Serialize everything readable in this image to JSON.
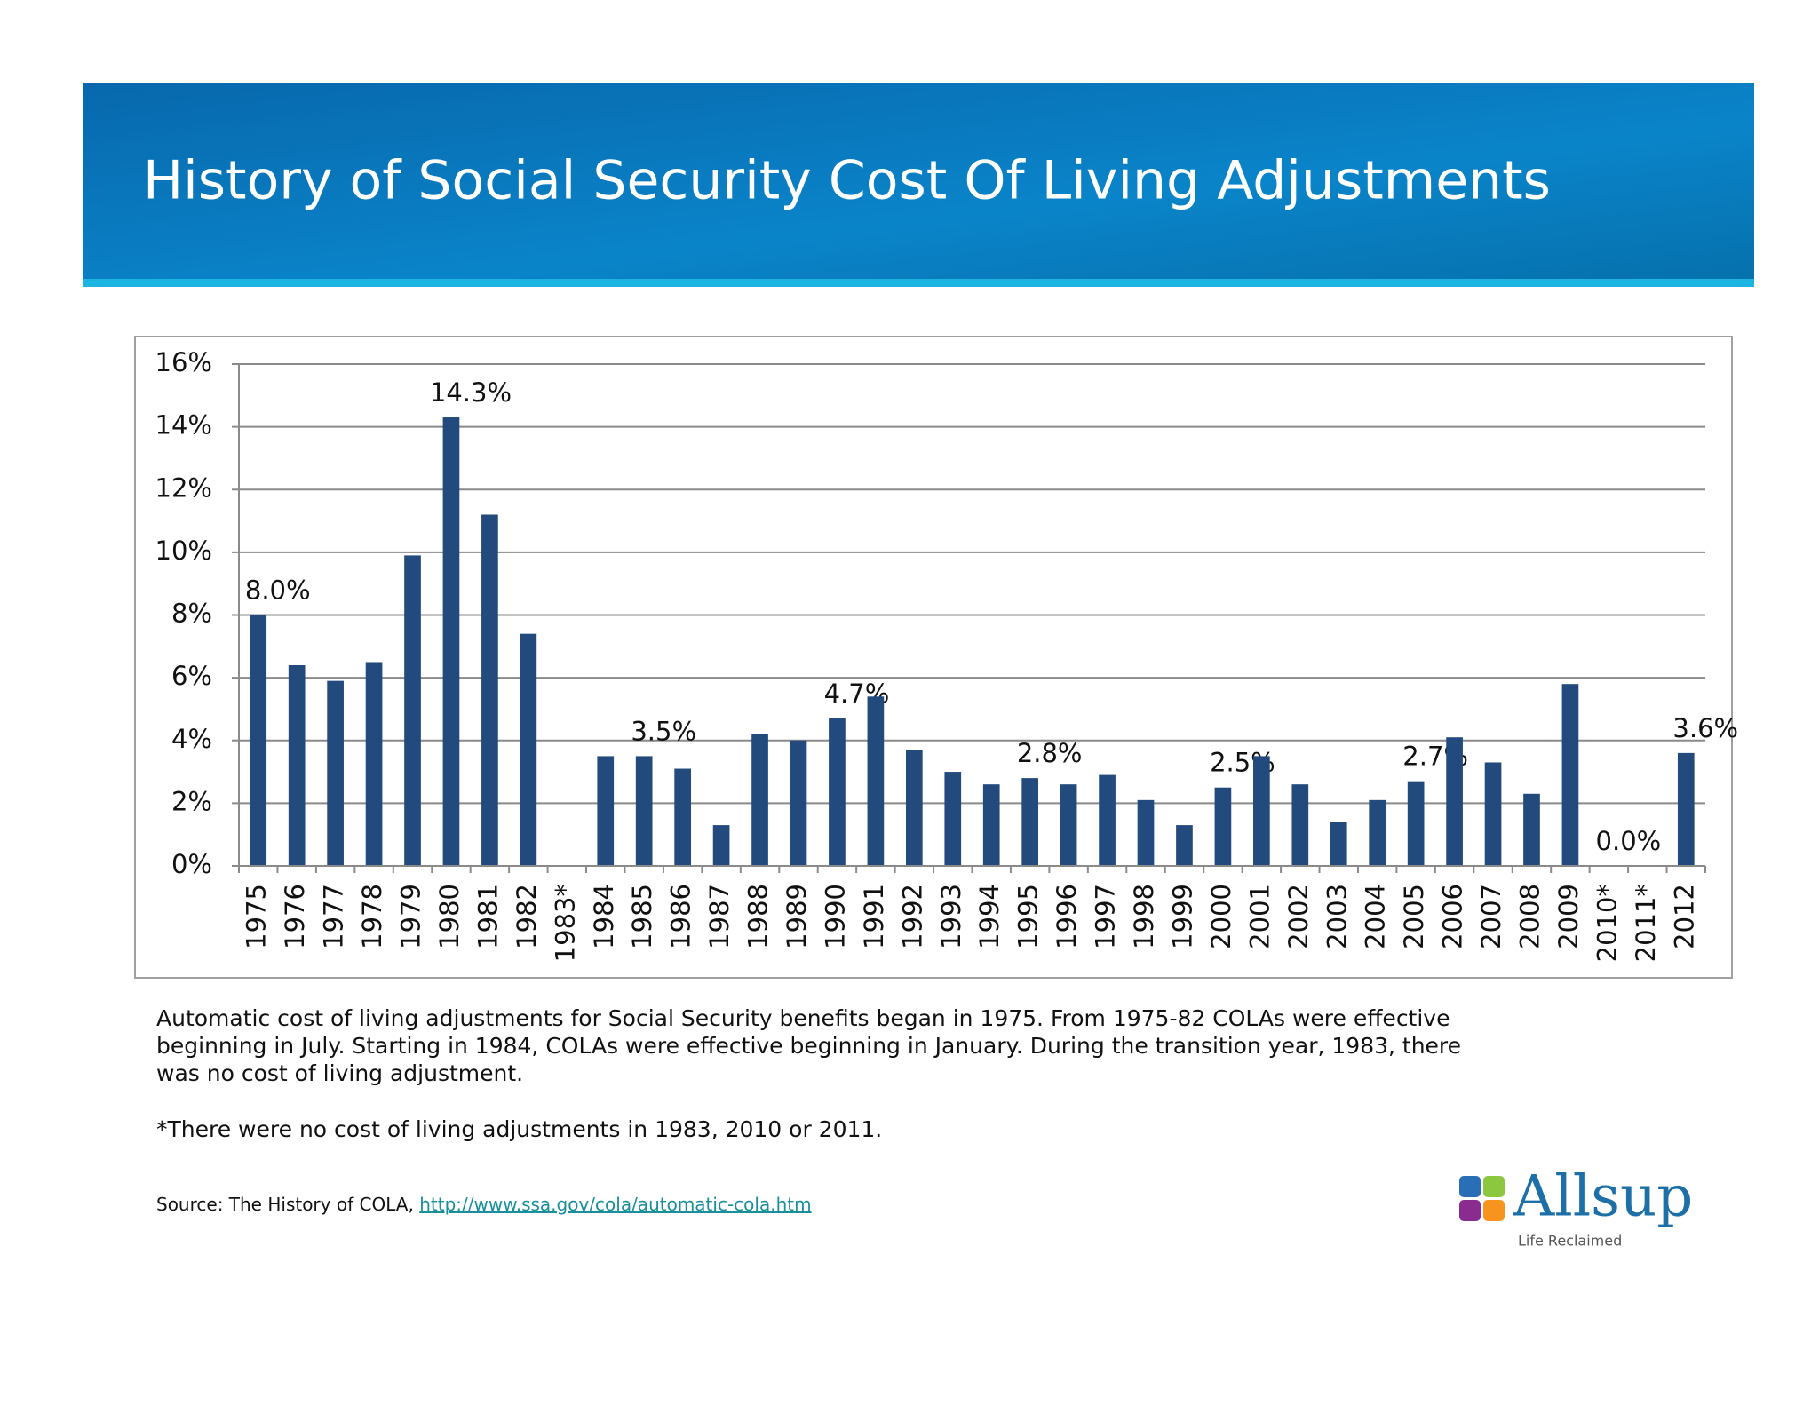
{
  "title": "History of Social Security Cost Of Living Adjustments",
  "chart_data": {
    "type": "bar",
    "categories": [
      "1975",
      "1976",
      "1977",
      "1978",
      "1979",
      "1980",
      "1981",
      "1982",
      "1983*",
      "1984",
      "1985",
      "1986",
      "1987",
      "1988",
      "1989",
      "1990",
      "1991",
      "1992",
      "1993",
      "1994",
      "1995",
      "1996",
      "1997",
      "1998",
      "1999",
      "2000",
      "2001",
      "2002",
      "2003",
      "2004",
      "2005",
      "2006",
      "2007",
      "2008",
      "2009",
      "2010*",
      "2011*",
      "2012"
    ],
    "values": [
      8.0,
      6.4,
      5.9,
      6.5,
      9.9,
      14.3,
      11.2,
      7.4,
      0,
      3.5,
      3.5,
      3.1,
      1.3,
      4.2,
      4.0,
      4.7,
      5.4,
      3.7,
      3.0,
      2.6,
      2.8,
      2.6,
      2.9,
      2.1,
      1.3,
      2.5,
      3.5,
      2.6,
      1.4,
      2.1,
      2.7,
      4.1,
      3.3,
      2.3,
      5.8,
      0,
      0,
      3.6
    ],
    "value_labels": [
      "8.0%",
      null,
      null,
      null,
      null,
      "14.3%",
      null,
      null,
      null,
      null,
      "3.5%",
      null,
      null,
      null,
      null,
      "4.7%",
      null,
      null,
      null,
      null,
      "2.8%",
      null,
      null,
      null,
      null,
      "2.5%",
      null,
      null,
      null,
      null,
      "2.7%",
      null,
      null,
      null,
      null,
      "0.0%",
      null,
      "3.6%"
    ],
    "color": "#234a7c",
    "ylim": [
      0,
      16
    ],
    "yticks": [
      {
        "value": 0,
        "label": "0%"
      },
      {
        "value": 2,
        "label": "2%"
      },
      {
        "value": 4,
        "label": "4%"
      },
      {
        "value": 6,
        "label": "6%"
      },
      {
        "value": 8,
        "label": "8%"
      },
      {
        "value": 10,
        "label": "10%"
      },
      {
        "value": 12,
        "label": "12%"
      },
      {
        "value": 14,
        "label": "14%"
      },
      {
        "value": 16,
        "label": "16%"
      }
    ],
    "grid": true
  },
  "notes": [
    "Automatic cost of living adjustments for Social Security benefits began in 1975. From 1975-82 COLAs were effective",
    "beginning in July. Starting in 1984, COLAs were effective beginning in January. During the transition year, 1983, there",
    "was no cost of living adjustment."
  ],
  "footnote": "*There were no cost of living adjustments in 1983, 2010 or 2011.",
  "source": {
    "text": "Source: The History of COLA, ",
    "link": "http://www.ssa.gov/cola/automatic-cola.htm"
  },
  "logo": {
    "name": "Allsup",
    "tagline": "Life Reclaimed"
  }
}
